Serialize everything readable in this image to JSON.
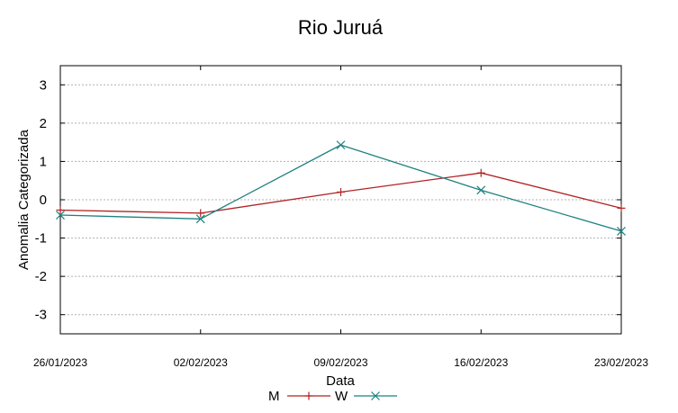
{
  "chart_data": {
    "type": "line",
    "title": "Rio Juruá",
    "xlabel": "Data",
    "ylabel": "Anomalia Categorizada",
    "categories": [
      "26/01/2023",
      "02/02/2023",
      "09/02/2023",
      "16/02/2023",
      "23/02/2023"
    ],
    "yticks": [
      "3",
      "2",
      "1",
      "0",
      "-1",
      "-2",
      "-3"
    ],
    "ylim": [
      -3.5,
      3.5
    ],
    "grid": "horizontal dotted",
    "legend_position": "bottom-center",
    "series": [
      {
        "name": "M",
        "marker": "+",
        "color": "#b22222",
        "values": [
          -0.27,
          -0.35,
          0.2,
          0.7,
          -0.22
        ]
      },
      {
        "name": "W",
        "marker": "x",
        "color": "#1e8080",
        "values": [
          -0.4,
          -0.5,
          1.43,
          0.25,
          -0.82
        ]
      }
    ]
  }
}
